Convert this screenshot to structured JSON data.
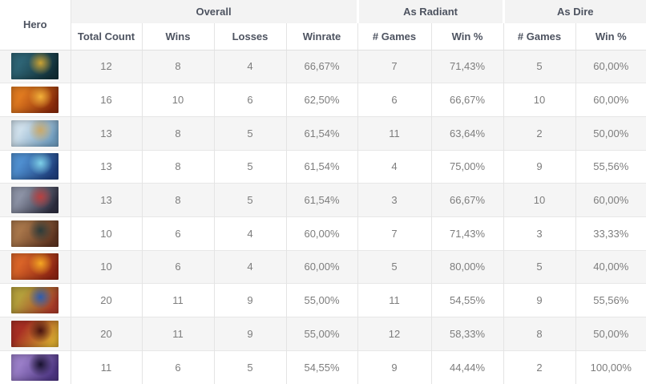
{
  "table": {
    "header": {
      "hero": "Hero",
      "groups": [
        {
          "label": "Overall",
          "colspan": 4
        },
        {
          "label": "As Radiant",
          "colspan": 2
        },
        {
          "label": "As Dire",
          "colspan": 2
        }
      ],
      "subheaders": [
        "Total Count",
        "Wins",
        "Losses",
        "Winrate",
        "# Games",
        "Win %",
        "# Games",
        "Win %"
      ]
    },
    "rows": [
      {
        "hero": {
          "name": "slark",
          "colors": [
            "#2e6475",
            "#123038",
            "#caa233"
          ]
        },
        "cells": [
          "12",
          "8",
          "4",
          "66,67%",
          "7",
          "71,43%",
          "5",
          "60,00%"
        ]
      },
      {
        "hero": {
          "name": "shadow-shaman",
          "colors": [
            "#e07a20",
            "#8a2a0a",
            "#f2b13a"
          ]
        },
        "cells": [
          "16",
          "10",
          "6",
          "62,50%",
          "6",
          "66,67%",
          "10",
          "60,00%"
        ]
      },
      {
        "hero": {
          "name": "crystal-maiden",
          "colors": [
            "#cfe0ec",
            "#6f9cbe",
            "#c9a96a"
          ]
        },
        "cells": [
          "13",
          "8",
          "5",
          "61,54%",
          "11",
          "63,64%",
          "2",
          "50,00%"
        ]
      },
      {
        "hero": {
          "name": "puck",
          "colors": [
            "#4f8fd0",
            "#1e3f7e",
            "#7ed0e8"
          ]
        },
        "cells": [
          "13",
          "8",
          "5",
          "61,54%",
          "4",
          "75,00%",
          "9",
          "55,56%"
        ]
      },
      {
        "hero": {
          "name": "vengeful-spirit",
          "colors": [
            "#8d93a6",
            "#2e2e40",
            "#b84040"
          ]
        },
        "cells": [
          "13",
          "8",
          "5",
          "61,54%",
          "3",
          "66,67%",
          "10",
          "60,00%"
        ]
      },
      {
        "hero": {
          "name": "centaur-warrunner",
          "colors": [
            "#a8764a",
            "#5e3420",
            "#2c3b3a"
          ]
        },
        "cells": [
          "10",
          "6",
          "4",
          "60,00%",
          "7",
          "71,43%",
          "3",
          "33,33%"
        ]
      },
      {
        "hero": {
          "name": "ember-spirit",
          "colors": [
            "#d96428",
            "#8e2413",
            "#f5a623"
          ]
        },
        "cells": [
          "10",
          "6",
          "4",
          "60,00%",
          "5",
          "80,00%",
          "5",
          "40,00%"
        ]
      },
      {
        "hero": {
          "name": "monkey-king",
          "colors": [
            "#b5a03c",
            "#a83a28",
            "#2f5cae"
          ]
        },
        "cells": [
          "20",
          "11",
          "9",
          "55,00%",
          "11",
          "54,55%",
          "9",
          "55,56%"
        ]
      },
      {
        "hero": {
          "name": "dragon-knight",
          "colors": [
            "#a82f24",
            "#d8a830",
            "#481410"
          ]
        },
        "cells": [
          "20",
          "11",
          "9",
          "55,00%",
          "12",
          "58,33%",
          "8",
          "50,00%"
        ]
      },
      {
        "hero": {
          "name": "faceless-void",
          "colors": [
            "#9a7ec8",
            "#4e3684",
            "#191230"
          ]
        },
        "cells": [
          "11",
          "6",
          "5",
          "54,55%",
          "9",
          "44,44%",
          "2",
          "100,00%"
        ]
      }
    ]
  },
  "colors": {
    "group_header_bg": "#f3f3f3",
    "stripe_bg": "#f5f5f5",
    "border": "#e4e4e4",
    "header_text": "#4d5360",
    "cell_text": "#7d7d7d"
  }
}
